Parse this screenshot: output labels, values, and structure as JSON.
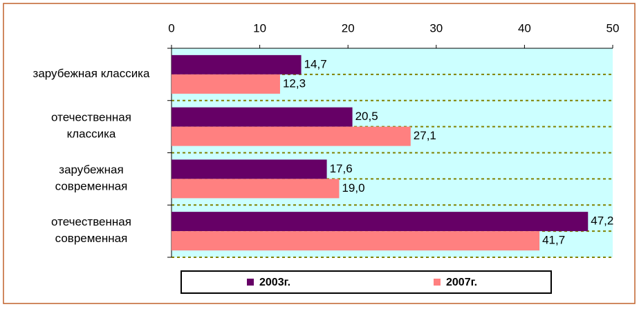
{
  "chart_data": {
    "type": "barh",
    "categories": [
      [
        "зарубежная классика"
      ],
      [
        "отечественная",
        "классика"
      ],
      [
        "зарубежная",
        "современная"
      ],
      [
        "отечественная",
        "современная"
      ]
    ],
    "series": [
      {
        "name": "2003г.",
        "color": "#660066",
        "values": [
          14.7,
          20.5,
          17.6,
          47.2
        ],
        "value_labels": [
          "14,7",
          "20,5",
          "17,6",
          "47,2"
        ]
      },
      {
        "name": "2007г.",
        "color": "#ff8080",
        "values": [
          12.3,
          27.1,
          19.0,
          41.7
        ],
        "value_labels": [
          "12,3",
          "27,1",
          "19,0",
          "41,7"
        ]
      }
    ],
    "xlim": [
      0,
      50
    ],
    "xticks": [
      0,
      10,
      20,
      30,
      40,
      50
    ],
    "legend": "bottom",
    "plot_background": "#ccffff"
  }
}
